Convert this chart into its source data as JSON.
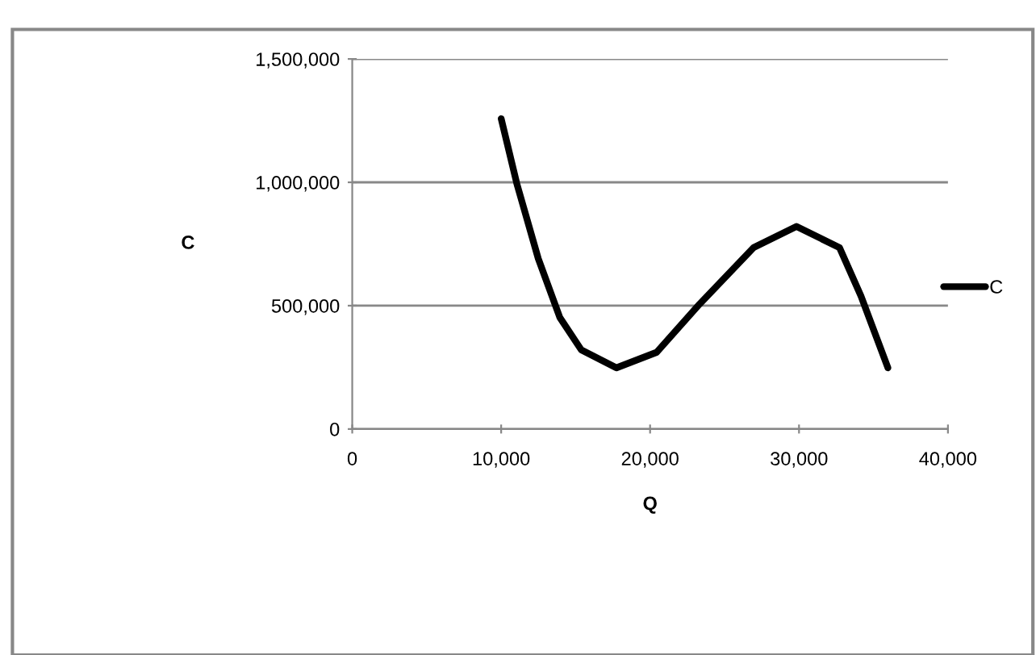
{
  "chart_data": {
    "type": "line",
    "xlabel": "Q",
    "ylabel": "C",
    "series": [
      {
        "name": "C",
        "color": "#000000",
        "x": [
          10000,
          11050,
          12490,
          13940,
          15380,
          17740,
          20440,
          23330,
          26940,
          29830,
          32720,
          34160,
          35970
        ],
        "values": [
          1258000,
          995000,
          691000,
          452000,
          321000,
          248000,
          311000,
          507000,
          735000,
          821000,
          735000,
          539000,
          248000
        ]
      }
    ],
    "xlim": [
      0,
      40000
    ],
    "xticks": [
      {
        "value": 0,
        "label": "0"
      },
      {
        "value": 10000,
        "label": "10,000"
      },
      {
        "value": 20000,
        "label": "20,000"
      },
      {
        "value": 30000,
        "label": "30,000"
      },
      {
        "value": 40000,
        "label": "40,000"
      }
    ],
    "ylim": [
      0,
      1500000
    ],
    "yticks": [
      {
        "value": 0,
        "label": "0"
      },
      {
        "value": 500000,
        "label": "500,000"
      },
      {
        "value": 1000000,
        "label": "1,000,000"
      },
      {
        "value": 1500000,
        "label": "1,500,000"
      }
    ],
    "grid": "y",
    "legend": "right",
    "marker": "none",
    "line_style": "solid"
  }
}
